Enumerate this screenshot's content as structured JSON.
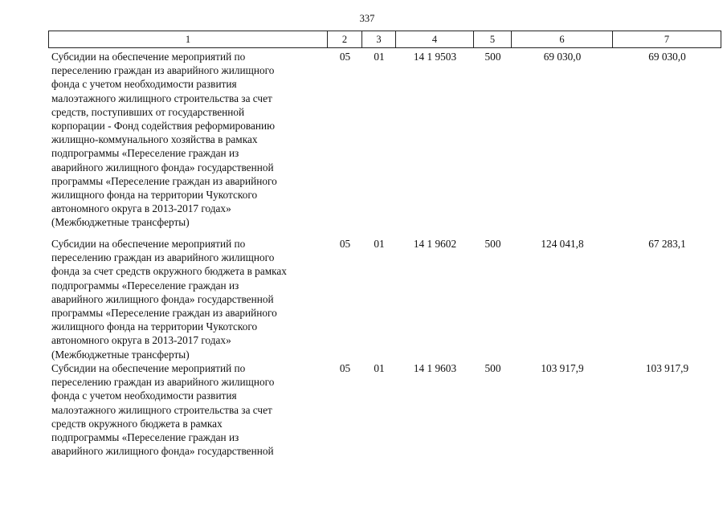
{
  "page_number": "337",
  "table": {
    "header": [
      "1",
      "2",
      "3",
      "4",
      "5",
      "6",
      "7"
    ],
    "rows": [
      {
        "description": [
          "Субсидии на обеспечение мероприятий по",
          "переселению граждан из аварийного жилищного",
          "фонда с учетом необходимости развития",
          "малоэтажного жилищного строительства за счет",
          "средств, поступивших от государственной",
          "корпорации - Фонд содействия реформированию",
          "жилищно-коммунального хозяйства в рамках",
          "подпрограммы «Переселение граждан из",
          "аварийного жилищного фонда» государственной",
          "программы «Переселение граждан из аварийного",
          "жилищного фонда на территории Чукотского",
          "автономного округа в 2013-2017 годах»",
          "(Межбюджетные трансферты)"
        ],
        "cells": [
          "05",
          "01",
          "14 1 9503",
          "500",
          "69 030,0",
          "69 030,0"
        ]
      },
      {
        "description": [
          "Субсидии на обеспечение мероприятий по",
          "переселению граждан из аварийного жилищного",
          "фонда за счет средств окружного бюджета в рамках",
          "подпрограммы «Переселение граждан из",
          "аварийного жилищного фонда» государственной",
          "программы «Переселение граждан из аварийного",
          "жилищного фонда на территории Чукотского",
          "автономного округа в 2013-2017 годах»",
          "(Межбюджетные трансферты)"
        ],
        "cells": [
          "05",
          "01",
          "14 1 9602",
          "500",
          "124 041,8",
          "67 283,1"
        ]
      },
      {
        "description": [
          "Субсидии на обеспечение мероприятий по",
          "переселению граждан из аварийного жилищного",
          "фонда с учетом необходимости развития",
          "малоэтажного жилищного строительства за счет",
          "средств окружного бюджета в рамках",
          "подпрограммы «Переселение граждан из",
          "аварийного жилищного фонда» государственной"
        ],
        "cells": [
          "05",
          "01",
          "14 1 9603",
          "500",
          "103 917,9",
          "103 917,9"
        ]
      }
    ]
  }
}
